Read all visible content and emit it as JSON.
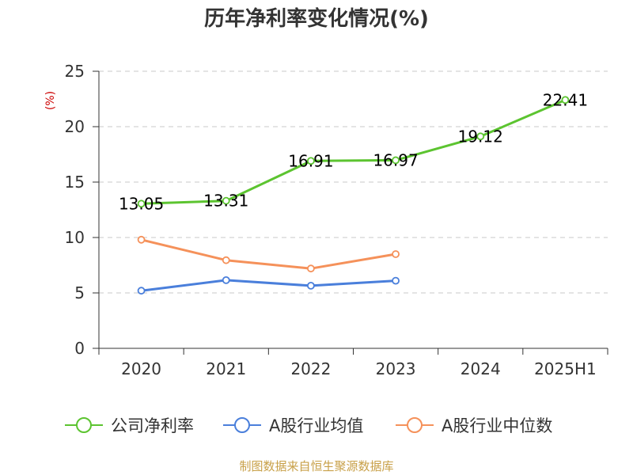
{
  "chart_data": {
    "type": "line",
    "title": "历年净利率变化情况(%)",
    "ylabel": "(%)",
    "xlabel": "",
    "categories": [
      "2020",
      "2021",
      "2022",
      "2023",
      "2024",
      "2025H1"
    ],
    "ylim": [
      0,
      25
    ],
    "yticks": [
      0,
      5,
      10,
      15,
      20,
      25
    ],
    "grid": true,
    "legend_position": "bottom",
    "series": [
      {
        "name": "公司净利率",
        "color": "#5cc430",
        "values": [
          13.05,
          13.31,
          16.91,
          16.97,
          19.12,
          22.41
        ],
        "labels": [
          "13.05",
          "13.31",
          "16.91",
          "16.97",
          "19.12",
          "22.41"
        ]
      },
      {
        "name": "A股行业均值",
        "color": "#4a7fdb",
        "values": [
          5.2,
          6.15,
          5.65,
          6.1,
          null,
          null
        ]
      },
      {
        "name": "A股行业中位数",
        "color": "#f5915a",
        "values": [
          9.8,
          7.95,
          7.2,
          8.5,
          null,
          null
        ]
      }
    ]
  },
  "source": "制图数据来自恒生聚源数据库"
}
